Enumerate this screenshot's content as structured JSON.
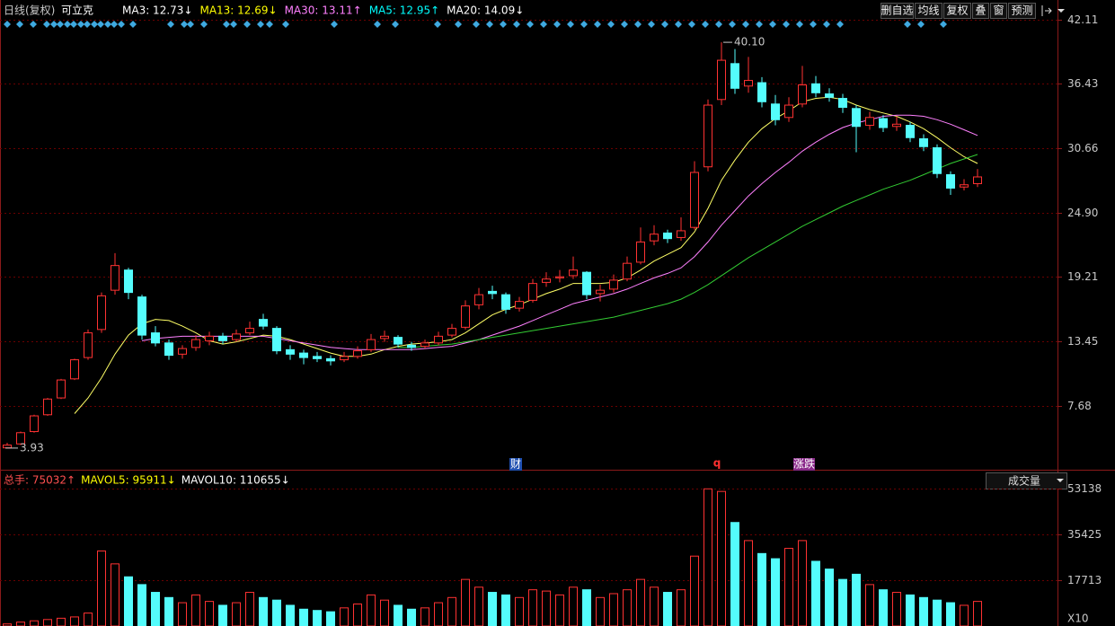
{
  "header": {
    "period": "日线(复权)",
    "stock": "可立克",
    "legend": [
      {
        "text": "MA3: 12.73↓",
        "color": "#ffffff"
      },
      {
        "text": "MA13: 12.69↓",
        "color": "#ffff00"
      },
      {
        "text": "MA30: 13.11↑",
        "color": "#ff80ff"
      },
      {
        "text": "MA5: 12.95↑",
        "color": "#00ffff"
      },
      {
        "text": "MA20: 14.09↓",
        "color": "#ffffff"
      }
    ],
    "buttons": [
      "删自选",
      "均线",
      "复权",
      "叠",
      "窗",
      "预测"
    ]
  },
  "events": [
    "财",
    "q",
    "涨跌"
  ],
  "chart_data": [
    {
      "type": "candlestick",
      "up_color": "#ff3232",
      "down_color": "#54fcfc",
      "ylim": [
        2.08,
        43.87
      ],
      "yticks": [
        7.68,
        13.45,
        19.21,
        {
          "value": 24.9,
          "label": "24.90"
        },
        30.66,
        36.43,
        42.11
      ],
      "grid": true,
      "high_label": "40.10",
      "low_label": "3.93",
      "ohlc": [
        [
          3.95,
          4.4,
          3.93,
          4.2
        ],
        [
          4.3,
          5.4,
          4.2,
          5.3
        ],
        [
          5.4,
          6.9,
          5.3,
          6.8
        ],
        [
          6.9,
          8.4,
          6.8,
          8.3
        ],
        [
          8.4,
          10.1,
          8.3,
          10.0
        ],
        [
          10.1,
          11.9,
          10.0,
          11.8
        ],
        [
          12.0,
          14.5,
          11.8,
          14.2
        ],
        [
          14.5,
          17.8,
          14.2,
          17.5
        ],
        [
          18.0,
          21.3,
          17.6,
          20.2
        ],
        [
          19.8,
          20.0,
          17.2,
          17.8
        ],
        [
          17.4,
          17.6,
          13.6,
          14.0
        ],
        [
          14.2,
          14.8,
          13.0,
          13.3
        ],
        [
          13.3,
          13.6,
          11.8,
          12.2
        ],
        [
          12.3,
          13.1,
          11.9,
          12.8
        ],
        [
          12.9,
          14.0,
          12.6,
          13.6
        ],
        [
          13.5,
          14.3,
          13.1,
          13.9
        ],
        [
          13.9,
          14.2,
          13.2,
          13.5
        ],
        [
          13.6,
          14.5,
          13.4,
          14.1
        ],
        [
          14.2,
          15.2,
          14.0,
          14.6
        ],
        [
          15.4,
          15.9,
          14.5,
          14.8
        ],
        [
          14.6,
          14.8,
          12.3,
          12.6
        ],
        [
          12.7,
          13.1,
          11.8,
          12.3
        ],
        [
          12.4,
          12.7,
          11.4,
          12.0
        ],
        [
          12.1,
          12.5,
          11.6,
          11.9
        ],
        [
          11.9,
          12.2,
          11.3,
          11.7
        ],
        [
          11.8,
          12.5,
          11.6,
          12.1
        ],
        [
          12.1,
          13.0,
          11.9,
          12.6
        ],
        [
          12.7,
          14.1,
          12.5,
          13.6
        ],
        [
          13.7,
          14.4,
          13.4,
          13.9
        ],
        [
          13.8,
          14.0,
          12.9,
          13.2
        ],
        [
          13.1,
          13.4,
          12.6,
          12.9
        ],
        [
          13.0,
          13.6,
          12.8,
          13.3
        ],
        [
          13.3,
          14.3,
          13.1,
          13.9
        ],
        [
          14.0,
          15.0,
          13.8,
          14.6
        ],
        [
          14.7,
          17.1,
          14.5,
          16.6
        ],
        [
          16.7,
          18.2,
          16.3,
          17.6
        ],
        [
          17.9,
          18.4,
          17.2,
          17.7
        ],
        [
          17.6,
          17.8,
          15.9,
          16.3
        ],
        [
          16.4,
          17.4,
          16.1,
          17.0
        ],
        [
          17.1,
          19.0,
          16.9,
          18.6
        ],
        [
          18.7,
          19.6,
          18.3,
          19.0
        ],
        [
          19.1,
          19.8,
          18.7,
          19.2
        ],
        [
          19.3,
          21.0,
          19.0,
          19.8
        ],
        [
          19.6,
          19.7,
          17.2,
          17.6
        ],
        [
          17.7,
          18.5,
          17.0,
          18.0
        ],
        [
          18.1,
          19.4,
          17.8,
          18.9
        ],
        [
          19.0,
          21.0,
          18.8,
          20.4
        ],
        [
          20.5,
          23.6,
          20.3,
          22.3
        ],
        [
          22.4,
          23.8,
          22.0,
          23.0
        ],
        [
          23.1,
          23.4,
          22.2,
          22.6
        ],
        [
          22.7,
          24.5,
          22.4,
          23.3
        ],
        [
          23.6,
          29.5,
          23.4,
          28.5
        ],
        [
          29.0,
          35.0,
          28.6,
          34.5
        ],
        [
          35.0,
          40.1,
          34.5,
          38.5
        ],
        [
          38.2,
          39.5,
          35.5,
          36.0
        ],
        [
          36.2,
          38.8,
          35.6,
          36.7
        ],
        [
          36.5,
          37.0,
          34.3,
          34.8
        ],
        [
          34.6,
          35.4,
          32.7,
          33.2
        ],
        [
          33.4,
          35.2,
          33.0,
          34.5
        ],
        [
          34.6,
          38.0,
          34.3,
          36.3
        ],
        [
          36.4,
          37.1,
          35.2,
          35.6
        ],
        [
          35.5,
          36.0,
          34.8,
          35.2
        ],
        [
          35.1,
          35.5,
          33.8,
          34.3
        ],
        [
          34.2,
          34.5,
          30.3,
          32.6
        ],
        [
          32.7,
          33.9,
          32.3,
          33.4
        ],
        [
          33.3,
          33.6,
          32.1,
          32.5
        ],
        [
          32.6,
          33.5,
          32.2,
          32.8
        ],
        [
          32.7,
          33.0,
          31.2,
          31.6
        ],
        [
          31.5,
          31.9,
          30.4,
          30.8
        ],
        [
          30.7,
          31.0,
          28.0,
          28.4
        ],
        [
          28.3,
          28.6,
          26.5,
          27.1
        ],
        [
          27.2,
          27.9,
          26.9,
          27.4
        ],
        [
          27.5,
          28.8,
          27.2,
          28.1
        ]
      ],
      "series": [
        {
          "color": "#ffff66",
          "values": [
            null,
            null,
            null,
            null,
            null,
            7.0,
            8.4,
            10.2,
            12.3,
            14.0,
            15.0,
            15.4,
            15.3,
            14.8,
            14.2,
            13.5,
            13.2,
            13.4,
            13.7,
            14.0,
            13.9,
            13.6,
            13.2,
            12.8,
            12.4,
            12.1,
            12.1,
            12.3,
            12.7,
            13.0,
            13.2,
            13.3,
            13.4,
            13.6,
            14.2,
            15.0,
            15.8,
            16.3,
            16.7,
            17.2,
            17.7,
            18.1,
            18.6,
            18.6,
            18.6,
            18.7,
            19.1,
            19.8,
            20.6,
            21.2,
            21.8,
            23.2,
            25.3,
            27.8,
            29.6,
            31.2,
            32.4,
            33.3,
            34.0,
            34.8,
            35.1,
            35.2,
            35.0,
            34.5,
            34.1,
            33.8,
            33.5,
            33.0,
            32.4,
            31.6,
            30.7,
            29.9,
            29.3
          ]
        },
        {
          "color": "#ff80ff",
          "values": [
            null,
            null,
            null,
            null,
            null,
            null,
            null,
            null,
            null,
            null,
            13.5,
            13.7,
            13.8,
            13.9,
            13.9,
            13.9,
            13.9,
            13.9,
            13.9,
            13.9,
            13.7,
            13.5,
            13.3,
            13.1,
            12.9,
            12.8,
            12.7,
            12.7,
            12.7,
            12.7,
            12.7,
            12.8,
            12.9,
            13.0,
            13.3,
            13.6,
            14.0,
            14.4,
            14.8,
            15.3,
            15.8,
            16.3,
            16.8,
            17.1,
            17.4,
            17.7,
            18.1,
            18.6,
            19.1,
            19.5,
            20.0,
            21.0,
            22.3,
            23.8,
            25.1,
            26.4,
            27.5,
            28.5,
            29.4,
            30.4,
            31.2,
            31.9,
            32.5,
            32.9,
            33.2,
            33.5,
            33.6,
            33.6,
            33.5,
            33.2,
            32.8,
            32.3,
            31.8
          ]
        },
        {
          "color": "#33cc33",
          "values": [
            null,
            null,
            null,
            null,
            null,
            null,
            null,
            null,
            null,
            null,
            null,
            null,
            null,
            null,
            null,
            null,
            null,
            null,
            null,
            null,
            null,
            null,
            null,
            null,
            null,
            null,
            null,
            null,
            null,
            12.9,
            12.9,
            13.0,
            13.1,
            13.2,
            13.4,
            13.6,
            13.8,
            14.0,
            14.2,
            14.4,
            14.6,
            14.8,
            15.0,
            15.2,
            15.4,
            15.6,
            15.9,
            16.2,
            16.5,
            16.8,
            17.2,
            17.8,
            18.5,
            19.3,
            20.1,
            20.9,
            21.6,
            22.3,
            23.0,
            23.7,
            24.3,
            24.9,
            25.5,
            26.0,
            26.5,
            27.0,
            27.4,
            27.8,
            28.3,
            28.8,
            29.3,
            29.7,
            30.1
          ]
        }
      ]
    },
    {
      "type": "bar",
      "indicator": "成交量",
      "unit_label": "X10",
      "legend": [
        {
          "text": "总手: 75032↑",
          "color": "#ff5050"
        },
        {
          "text": "MAVOL5: 95911↓",
          "color": "#ffff00"
        },
        {
          "text": "MAVOL10: 110655↓",
          "color": "#ffffff"
        }
      ],
      "ylim": [
        0,
        59000
      ],
      "yticks": [
        17713,
        35425,
        53138
      ],
      "values": [
        800,
        1500,
        2000,
        2500,
        3000,
        3500,
        5000,
        29000,
        24000,
        19000,
        16000,
        13000,
        11000,
        9000,
        12000,
        9500,
        8000,
        9000,
        13000,
        11000,
        10000,
        8000,
        6500,
        6000,
        5500,
        7000,
        8500,
        12000,
        10000,
        8000,
        6500,
        7000,
        9000,
        11000,
        18000,
        15000,
        13000,
        12000,
        11000,
        14000,
        13500,
        12000,
        15000,
        14000,
        11000,
        12500,
        14000,
        18000,
        15000,
        13000,
        14000,
        27000,
        53000,
        52000,
        40000,
        33000,
        28000,
        26000,
        30000,
        33000,
        25000,
        22000,
        18000,
        20000,
        16000,
        14000,
        13000,
        12000,
        11000,
        10000,
        9000,
        8000,
        9500
      ]
    }
  ]
}
